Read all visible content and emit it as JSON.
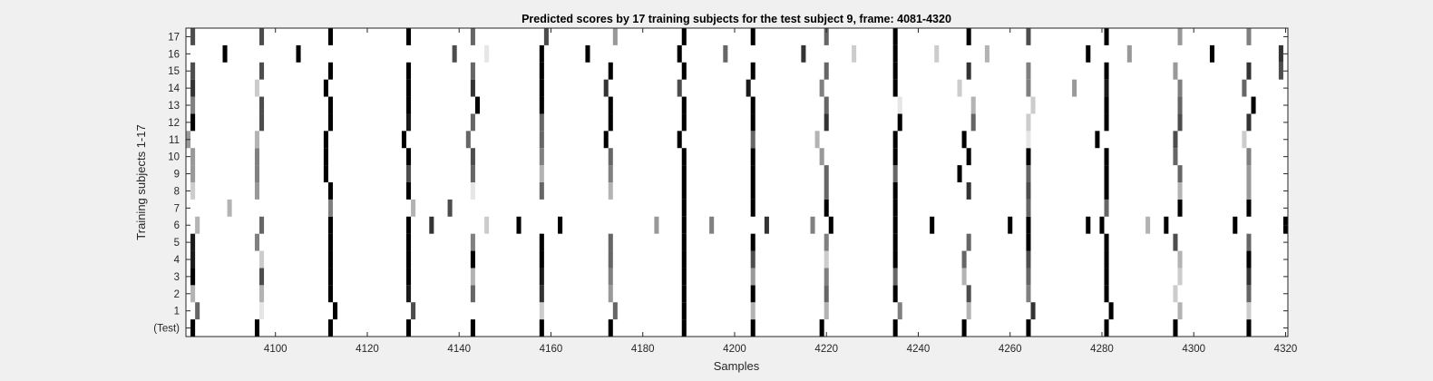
{
  "chart_data": {
    "type": "heatmap",
    "title": "Predicted scores by 17 training subjects for the test subject 9, frame: 4081-4320",
    "xlabel": "Samples",
    "ylabel": "Training subjects 1-17",
    "xlim": [
      4081,
      4320
    ],
    "xticks": [
      4100,
      4120,
      4140,
      4160,
      4180,
      4200,
      4220,
      4240,
      4260,
      4280,
      4300,
      4320
    ],
    "rows": [
      "(Test)",
      "1",
      "2",
      "3",
      "4",
      "5",
      "6",
      "7",
      "8",
      "9",
      "10",
      "11",
      "12",
      "13",
      "14",
      "15",
      "16",
      "17"
    ],
    "colormap": "gray-inverted",
    "value_range": [
      0,
      1
    ],
    "marks": [
      {
        "row": "(Test)",
        "points": [
          [
            4082,
            1
          ],
          [
            4096,
            1
          ],
          [
            4112,
            1
          ],
          [
            4129,
            1
          ],
          [
            4143,
            1
          ],
          [
            4158,
            1
          ],
          [
            4173,
            1
          ],
          [
            4189,
            1
          ],
          [
            4204,
            1
          ],
          [
            4219,
            1
          ],
          [
            4235,
            1
          ],
          [
            4250,
            1
          ],
          [
            4264,
            1
          ],
          [
            4281,
            1
          ],
          [
            4296,
            1
          ],
          [
            4312,
            1
          ]
        ]
      },
      {
        "row": "1",
        "points": [
          [
            4083,
            0.6
          ],
          [
            4097,
            0.1
          ],
          [
            4113,
            1
          ],
          [
            4130,
            0.7
          ],
          [
            4158,
            0.2
          ],
          [
            4174,
            0.6
          ],
          [
            4189,
            1
          ],
          [
            4204,
            0.3
          ],
          [
            4220,
            0.3
          ],
          [
            4236,
            0.5
          ],
          [
            4251,
            0.3
          ],
          [
            4265,
            0.8
          ],
          [
            4282,
            1
          ],
          [
            4297,
            0.3
          ],
          [
            4312,
            0.2
          ]
        ]
      },
      {
        "row": "2",
        "points": [
          [
            4082,
            0.3
          ],
          [
            4097,
            0.3
          ],
          [
            4112,
            1
          ],
          [
            4129,
            0.9
          ],
          [
            4143,
            0.6
          ],
          [
            4158,
            0.8
          ],
          [
            4173,
            0.4
          ],
          [
            4189,
            1
          ],
          [
            4204,
            1
          ],
          [
            4220,
            0.6
          ],
          [
            4235,
            1
          ],
          [
            4251,
            0.7
          ],
          [
            4264,
            0.5
          ],
          [
            4281,
            1
          ],
          [
            4296,
            0.2
          ],
          [
            4312,
            0.6
          ]
        ]
      },
      {
        "row": "3",
        "points": [
          [
            4082,
            1
          ],
          [
            4097,
            0.7
          ],
          [
            4112,
            1
          ],
          [
            4129,
            1
          ],
          [
            4143,
            0.3
          ],
          [
            4158,
            0.9
          ],
          [
            4173,
            0.5
          ],
          [
            4189,
            1
          ],
          [
            4204,
            0.4
          ],
          [
            4220,
            0.5
          ],
          [
            4235,
            0.6
          ],
          [
            4250,
            0.3
          ],
          [
            4264,
            0.6
          ],
          [
            4281,
            1
          ],
          [
            4297,
            0.2
          ],
          [
            4312,
            0.8
          ]
        ]
      },
      {
        "row": "4",
        "points": [
          [
            4082,
            0.9
          ],
          [
            4097,
            0.2
          ],
          [
            4112,
            1
          ],
          [
            4129,
            1
          ],
          [
            4143,
            1
          ],
          [
            4158,
            1
          ],
          [
            4173,
            0.6
          ],
          [
            4189,
            1
          ],
          [
            4204,
            0.7
          ],
          [
            4220,
            0.2
          ],
          [
            4235,
            1
          ],
          [
            4250,
            0.6
          ],
          [
            4264,
            0.7
          ],
          [
            4281,
            1
          ],
          [
            4297,
            0.3
          ],
          [
            4312,
            1
          ]
        ]
      },
      {
        "row": "5",
        "points": [
          [
            4082,
            0.9
          ],
          [
            4096,
            0.5
          ],
          [
            4112,
            1
          ],
          [
            4129,
            1
          ],
          [
            4143,
            0.5
          ],
          [
            4158,
            1
          ],
          [
            4173,
            0.6
          ],
          [
            4189,
            1
          ],
          [
            4204,
            1
          ],
          [
            4220,
            0.5
          ],
          [
            4235,
            1
          ],
          [
            4251,
            0.6
          ],
          [
            4264,
            1
          ],
          [
            4281,
            1
          ],
          [
            4296,
            0.7
          ],
          [
            4312,
            0.6
          ]
        ]
      },
      {
        "row": "6",
        "points": [
          [
            4083,
            0.3
          ],
          [
            4097,
            0.6
          ],
          [
            4112,
            1
          ],
          [
            4129,
            1
          ],
          [
            4134,
            0.8
          ],
          [
            4146,
            0.2
          ],
          [
            4153,
            1
          ],
          [
            4162,
            1
          ],
          [
            4183,
            0.4
          ],
          [
            4189,
            1
          ],
          [
            4195,
            0.5
          ],
          [
            4207,
            0.8
          ],
          [
            4217,
            0.5
          ],
          [
            4221,
            1
          ],
          [
            4235,
            1
          ],
          [
            4243,
            1
          ],
          [
            4260,
            1
          ],
          [
            4264,
            1
          ],
          [
            4277,
            1
          ],
          [
            4280,
            1
          ],
          [
            4290,
            0.3
          ],
          [
            4294,
            1
          ],
          [
            4309,
            1
          ],
          [
            4320,
            1
          ]
        ]
      },
      {
        "row": "7",
        "points": [
          [
            4090,
            0.3
          ],
          [
            4112,
            0.5
          ],
          [
            4130,
            0.3
          ],
          [
            4138,
            0.7
          ],
          [
            4189,
            1
          ],
          [
            4204,
            1
          ],
          [
            4220,
            1
          ],
          [
            4235,
            1
          ],
          [
            4264,
            0.6
          ],
          [
            4281,
            0.6
          ],
          [
            4297,
            1
          ],
          [
            4312,
            1
          ]
        ]
      },
      {
        "row": "8",
        "points": [
          [
            4082,
            0.2
          ],
          [
            4096,
            0.4
          ],
          [
            4112,
            1
          ],
          [
            4129,
            1
          ],
          [
            4143,
            0.1
          ],
          [
            4158,
            0.6
          ],
          [
            4173,
            0.3
          ],
          [
            4189,
            1
          ],
          [
            4204,
            1
          ],
          [
            4220,
            0.6
          ],
          [
            4235,
            1
          ],
          [
            4251,
            0.8
          ],
          [
            4264,
            0.7
          ],
          [
            4281,
            1
          ],
          [
            4297,
            0.3
          ],
          [
            4312,
            0.4
          ]
        ]
      },
      {
        "row": "9",
        "points": [
          [
            4082,
            0.4
          ],
          [
            4096,
            0.5
          ],
          [
            4111,
            1
          ],
          [
            4129,
            0.7
          ],
          [
            4143,
            0.6
          ],
          [
            4158,
            0.3
          ],
          [
            4173,
            0.5
          ],
          [
            4189,
            1
          ],
          [
            4204,
            1
          ],
          [
            4220,
            0.6
          ],
          [
            4235,
            0.6
          ],
          [
            4249,
            1
          ],
          [
            4264,
            0.6
          ],
          [
            4281,
            1
          ],
          [
            4297,
            0.6
          ],
          [
            4312,
            0.4
          ]
        ]
      },
      {
        "row": "10",
        "points": [
          [
            4082,
            0.4
          ],
          [
            4096,
            0.5
          ],
          [
            4111,
            1
          ],
          [
            4129,
            1
          ],
          [
            4143,
            0.7
          ],
          [
            4158,
            0.5
          ],
          [
            4173,
            0.6
          ],
          [
            4189,
            1
          ],
          [
            4204,
            1
          ],
          [
            4219,
            0.4
          ],
          [
            4235,
            1
          ],
          [
            4251,
            1
          ],
          [
            4264,
            1
          ],
          [
            4281,
            1
          ],
          [
            4296,
            0.6
          ],
          [
            4312,
            0.5
          ]
        ]
      },
      {
        "row": "11",
        "points": [
          [
            4081,
            0.4
          ],
          [
            4096,
            0.3
          ],
          [
            4111,
            1
          ],
          [
            4128,
            1
          ],
          [
            4142,
            0.6
          ],
          [
            4158,
            0.6
          ],
          [
            4172,
            1
          ],
          [
            4188,
            1
          ],
          [
            4204,
            0.6
          ],
          [
            4218,
            0.3
          ],
          [
            4235,
            1
          ],
          [
            4250,
            1
          ],
          [
            4264,
            0.1
          ],
          [
            4279,
            1
          ],
          [
            4296,
            0.7
          ],
          [
            4311,
            0.2
          ]
        ]
      },
      {
        "row": "12",
        "points": [
          [
            4082,
            1
          ],
          [
            4097,
            0.7
          ],
          [
            4112,
            1
          ],
          [
            4129,
            0.9
          ],
          [
            4143,
            0.6
          ],
          [
            4158,
            0.6
          ],
          [
            4173,
            1
          ],
          [
            4189,
            1
          ],
          [
            4204,
            1
          ],
          [
            4220,
            0.8
          ],
          [
            4236,
            1
          ],
          [
            4252,
            0.6
          ],
          [
            4264,
            0.2
          ],
          [
            4281,
            1
          ],
          [
            4297,
            0.7
          ],
          [
            4312,
            0.8
          ]
        ]
      },
      {
        "row": "13",
        "points": [
          [
            4082,
            0.5
          ],
          [
            4097,
            0.7
          ],
          [
            4112,
            1
          ],
          [
            4129,
            1
          ],
          [
            4144,
            1
          ],
          [
            4158,
            1
          ],
          [
            4173,
            1
          ],
          [
            4189,
            1
          ],
          [
            4204,
            1
          ],
          [
            4220,
            0.6
          ],
          [
            4236,
            0.1
          ],
          [
            4252,
            0.3
          ],
          [
            4265,
            0.2
          ],
          [
            4281,
            1
          ],
          [
            4297,
            0.6
          ],
          [
            4313,
            1
          ]
        ]
      },
      {
        "row": "14",
        "points": [
          [
            4082,
            0.8
          ],
          [
            4096,
            0.2
          ],
          [
            4111,
            1
          ],
          [
            4129,
            1
          ],
          [
            4143,
            0.8
          ],
          [
            4158,
            1
          ],
          [
            4172,
            0.8
          ],
          [
            4188,
            0.7
          ],
          [
            4203,
            0.9
          ],
          [
            4219,
            0.5
          ],
          [
            4235,
            1
          ],
          [
            4249,
            0.2
          ],
          [
            4264,
            0.5
          ],
          [
            4274,
            0.4
          ],
          [
            4281,
            0.9
          ],
          [
            4297,
            0.5
          ],
          [
            4311,
            0.6
          ]
        ]
      },
      {
        "row": "15",
        "points": [
          [
            4082,
            0.7
          ],
          [
            4097,
            0.7
          ],
          [
            4112,
            1
          ],
          [
            4129,
            1
          ],
          [
            4143,
            0.6
          ],
          [
            4158,
            1
          ],
          [
            4173,
            1
          ],
          [
            4189,
            1
          ],
          [
            4204,
            1
          ],
          [
            4220,
            0.6
          ],
          [
            4235,
            1
          ],
          [
            4251,
            0.8
          ],
          [
            4264,
            0.5
          ],
          [
            4281,
            1
          ],
          [
            4296,
            0.4
          ],
          [
            4312,
            0.8
          ],
          [
            4319,
            0.7
          ]
        ]
      },
      {
        "row": "16",
        "points": [
          [
            4089,
            1
          ],
          [
            4105,
            1
          ],
          [
            4139,
            0.7
          ],
          [
            4146,
            0.1
          ],
          [
            4158,
            1
          ],
          [
            4168,
            1
          ],
          [
            4188,
            1
          ],
          [
            4198,
            0.6
          ],
          [
            4215,
            0.8
          ],
          [
            4226,
            0.2
          ],
          [
            4235,
            1
          ],
          [
            4244,
            0.2
          ],
          [
            4255,
            0.3
          ],
          [
            4277,
            1
          ],
          [
            4286,
            0.4
          ],
          [
            4304,
            1
          ],
          [
            4319,
            0.8
          ]
        ]
      },
      {
        "row": "17",
        "points": [
          [
            4082,
            0.7
          ],
          [
            4097,
            0.7
          ],
          [
            4112,
            1
          ],
          [
            4129,
            1
          ],
          [
            4143,
            0.6
          ],
          [
            4159,
            0.7
          ],
          [
            4174,
            0.4
          ],
          [
            4189,
            1
          ],
          [
            4204,
            1
          ],
          [
            4220,
            0.6
          ],
          [
            4235,
            1
          ],
          [
            4251,
            1
          ],
          [
            4264,
            0.7
          ],
          [
            4281,
            1
          ],
          [
            4297,
            0.4
          ],
          [
            4312,
            0.5
          ]
        ]
      }
    ]
  }
}
